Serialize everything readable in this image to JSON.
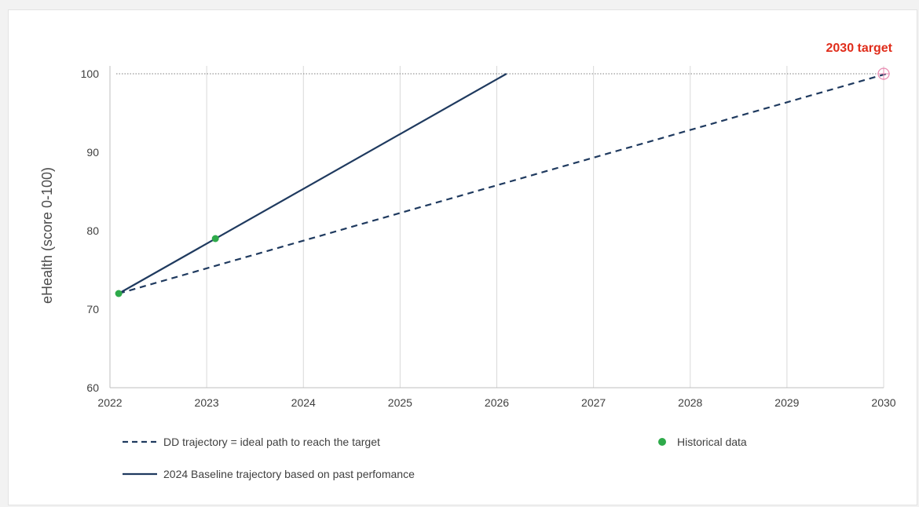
{
  "chart_data": {
    "type": "line",
    "ylabel": "eHealth (score 0-100)",
    "ylim": [
      60,
      100
    ],
    "yticks": [
      "60",
      "70",
      "80",
      "90",
      "100"
    ],
    "xlim": [
      2022,
      2030
    ],
    "xticks": [
      "2022",
      "2023",
      "2024",
      "2025",
      "2026",
      "2027",
      "2028",
      "2029",
      "2030"
    ],
    "grid": "vertical",
    "target_label": "2030 target",
    "target": {
      "x": 2030,
      "y": 100
    },
    "series": [
      {
        "name": "DD trajectory = ideal path to reach the target",
        "style": "dashed",
        "color": "#1f3a5f",
        "x": [
          2022,
          2030
        ],
        "y": [
          72,
          100
        ]
      },
      {
        "name": "2024 Baseline trajectory based on past perfomance",
        "style": "solid",
        "color": "#1f3a5f",
        "x": [
          2022,
          2026
        ],
        "y": [
          72,
          100
        ]
      },
      {
        "name": "Historical data",
        "style": "markers",
        "color": "#2eaa4a",
        "x": [
          2022,
          2023
        ],
        "y": [
          72,
          79
        ]
      }
    ],
    "legend": [
      {
        "label": "DD trajectory = ideal path to reach the target",
        "kind": "dashed"
      },
      {
        "label": "Historical data",
        "kind": "dot"
      },
      {
        "label": "2024 Baseline trajectory based on past perfomance",
        "kind": "solid"
      }
    ],
    "legend_placement": "bottom"
  }
}
